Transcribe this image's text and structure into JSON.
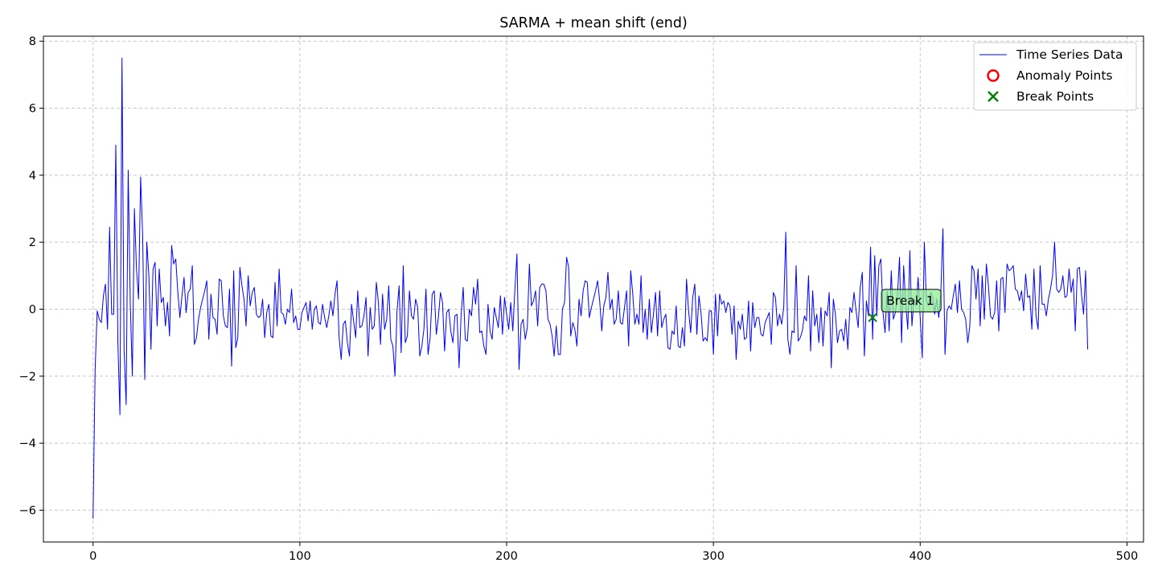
{
  "chart_data": {
    "type": "line",
    "title": "SARMA + mean shift (end)",
    "xlabel": "",
    "ylabel": "",
    "xlim": [
      -24,
      508
    ],
    "ylim": [
      -6.95,
      8.15
    ],
    "xticks": [
      0,
      100,
      200,
      300,
      400,
      500
    ],
    "yticks": [
      -6,
      -4,
      -2,
      0,
      2,
      4,
      6,
      8
    ],
    "grid": true,
    "legend_position": "upper right",
    "series": [
      {
        "name": "Time Series Data",
        "kind": "line",
        "color": "#0000ff",
        "x_start": 0,
        "x_step": 1,
        "values": [
          -6.25,
          -1.8,
          -0.05,
          -0.3,
          -0.4,
          0.4,
          0.75,
          -0.6,
          2.45,
          -0.15,
          -0.15,
          4.9,
          -1.0,
          -3.15,
          7.5,
          -1.2,
          -2.85,
          4.15,
          0.2,
          -2.0,
          3.0,
          1.2,
          0.3,
          3.95,
          2.2,
          -2.1,
          2.0,
          1.0,
          -1.2,
          1.2,
          1.4,
          -0.5,
          1.2,
          0.2,
          0.35,
          -0.5,
          0.2,
          -0.8,
          1.9,
          1.35,
          1.5,
          0.5,
          -0.25,
          0.4,
          0.95,
          -0.1,
          0.5,
          0.6,
          1.3,
          -1.05,
          -0.85,
          -0.3,
          0.05,
          0.3,
          0.55,
          0.85,
          -0.9,
          0.45,
          -0.25,
          -0.3,
          -0.75,
          0.9,
          0.85,
          -0.2,
          -0.5,
          -0.55,
          0.6,
          -1.7,
          1.15,
          -1.15,
          -0.85,
          1.25,
          0.7,
          0.3,
          -0.5,
          1.0,
          0.1,
          0.5,
          0.65,
          -0.15,
          -0.25,
          -0.2,
          0.3,
          -0.85,
          -0.1,
          0.15,
          -0.8,
          -0.85,
          0.8,
          -0.5,
          1.2,
          -0.1,
          -0.15,
          -0.45,
          0.0,
          -0.1,
          0.6,
          -0.4,
          -0.2,
          -0.6,
          -0.6,
          -0.1,
          0.05,
          0.2,
          -0.35,
          0.25,
          -0.6,
          0.0,
          0.1,
          -0.4,
          -0.45,
          0.15,
          -0.25,
          -0.55,
          -0.2,
          0.25,
          -0.2,
          0.45,
          0.85,
          -0.85,
          -1.5,
          -0.45,
          -0.35,
          -1.0,
          -1.4,
          0.15,
          -0.35,
          -0.85,
          0.55,
          -0.55,
          -0.5,
          -0.2,
          0.35,
          -1.4,
          0.05,
          -0.6,
          -0.5,
          0.8,
          0.2,
          -1.05,
          0.45,
          -0.6,
          -0.3,
          0.7,
          -0.9,
          -1.1,
          -2.0,
          -0.05,
          0.7,
          -1.3,
          1.3,
          -1.0,
          -0.8,
          0.55,
          -0.2,
          -0.3,
          0.3,
          0.05,
          -1.4,
          -1.1,
          -0.6,
          0.6,
          -1.35,
          -0.85,
          0.45,
          0.55,
          -0.75,
          -0.25,
          0.5,
          0.2,
          -1.25,
          -0.1,
          0.0,
          -0.65,
          -1.0,
          -0.2,
          -0.15,
          -1.75,
          -0.15,
          0.65,
          -0.9,
          -0.95,
          0.0,
          -0.2,
          0.65,
          0.15,
          0.9,
          -0.7,
          -0.65,
          -1.1,
          -1.35,
          0.15,
          -0.65,
          -0.9,
          0.05,
          -0.25,
          -0.55,
          0.4,
          -0.75,
          0.35,
          -0.15,
          -0.6,
          0.2,
          -0.65,
          0.6,
          1.65,
          -1.8,
          -0.45,
          -0.3,
          -0.9,
          -0.55,
          1.35,
          0.1,
          0.25,
          0.55,
          -0.5,
          0.65,
          0.75,
          0.75,
          0.55,
          -0.3,
          -0.45,
          -0.8,
          -1.4,
          -0.5,
          -1.35,
          -1.35,
          0.0,
          0.2,
          1.55,
          1.25,
          -0.8,
          -0.4,
          -0.6,
          -1.1,
          0.3,
          -0.2,
          0.55,
          0.85,
          0.8,
          -0.25,
          0.05,
          0.3,
          0.55,
          0.85,
          0.25,
          -0.65,
          0.1,
          0.35,
          1.1,
          0.0,
          0.3,
          -0.45,
          -0.3,
          0.55,
          -0.4,
          -0.45,
          0.05,
          0.55,
          -1.1,
          1.15,
          0.45,
          -0.45,
          -0.15,
          -0.45,
          1.0,
          -0.7,
          0.0,
          -0.9,
          0.3,
          -0.7,
          -0.15,
          0.5,
          -0.8,
          0.55,
          -0.55,
          -0.3,
          -0.15,
          -1.15,
          -1.2,
          -0.65,
          -0.75,
          0.1,
          -1.1,
          -1.15,
          -0.55,
          -1.1,
          0.9,
          -0.05,
          -0.7,
          0.35,
          0.75,
          -0.75,
          0.4,
          -0.1,
          -0.95,
          -0.85,
          -0.95,
          -0.05,
          -0.05,
          -1.35,
          0.45,
          -0.8,
          0.45,
          0.15,
          0.25,
          -0.1,
          0.2,
          0.1,
          -0.75,
          0.1,
          -1.5,
          -0.35,
          -0.6,
          -0.15,
          -0.9,
          -0.85,
          0.25,
          -1.25,
          0.2,
          -0.55,
          -0.25,
          -0.25,
          -0.75,
          -0.8,
          -0.4,
          -0.25,
          -0.1,
          -1.05,
          0.5,
          0.35,
          -0.5,
          -0.15,
          -0.45,
          0.05,
          2.3,
          -0.9,
          -1.35,
          -0.65,
          -0.7,
          1.3,
          -0.95,
          -0.85,
          -0.65,
          -0.2,
          -0.35,
          1.0,
          -1.25,
          0.55,
          -0.5,
          -0.15,
          -1.0,
          0.05,
          -1.1,
          -0.05,
          -0.2,
          0.5,
          -1.75,
          0.3,
          -0.15,
          -1.0,
          -0.65,
          -0.6,
          -0.95,
          -0.3,
          -1.2,
          0.05,
          -0.1,
          0.5,
          -0.05,
          -0.55,
          0.65,
          1.1,
          -1.4,
          0.25,
          -0.2,
          1.85,
          -0.9,
          1.6,
          -0.2,
          1.3,
          1.5,
          -0.1,
          -0.7,
          0.55,
          -0.65,
          1.15,
          -0.3,
          -0.1,
          0.4,
          1.55,
          -1.0,
          1.3,
          0.15,
          -0.6,
          1.75,
          -0.5,
          0.3,
          0.1,
          0.95,
          -0.25,
          -1.45,
          2.0,
          0.25,
          0.1,
          0.5,
          0.4,
          -0.15,
          0.3,
          -0.25,
          0.55,
          2.4,
          -1.35,
          -0.05,
          0.1,
          0.0,
          0.4,
          0.75,
          -0.1,
          0.85,
          0.0,
          -0.1,
          -0.3,
          -1.0,
          -0.5,
          1.3,
          1.15,
          0.3,
          1.2,
          -0.5,
          1.0,
          -0.3,
          1.35,
          0.7,
          -0.2,
          -0.3,
          -0.1,
          0.85,
          -0.65,
          0.9,
          0.95,
          -0.1,
          1.35,
          1.15,
          1.2,
          1.3,
          0.6,
          0.55,
          0.25,
          0.55,
          -0.05,
          1.05,
          0.35,
          0.4,
          -0.6,
          1.2,
          -0.2,
          -0.6,
          1.3,
          0.15,
          0.15,
          -0.2,
          0.3,
          0.6,
          1.0,
          2.0,
          0.6,
          0.5,
          0.6,
          1.0,
          0.35,
          0.4,
          1.2,
          0.5,
          0.9,
          -0.65,
          1.2,
          1.25,
          0.45,
          -0.15,
          1.15,
          -1.2
        ]
      },
      {
        "name": "Anomaly Points",
        "kind": "scatter",
        "marker": "circle-open",
        "color": "#ff0000",
        "points": []
      },
      {
        "name": "Break Points",
        "kind": "scatter",
        "marker": "x",
        "color": "#008000",
        "points": [
          {
            "x": 377,
            "y": -0.25
          }
        ]
      }
    ],
    "annotations": [
      {
        "text": "Break 1",
        "x": 377,
        "y": -0.25,
        "box_color": "#90ee90"
      }
    ]
  }
}
